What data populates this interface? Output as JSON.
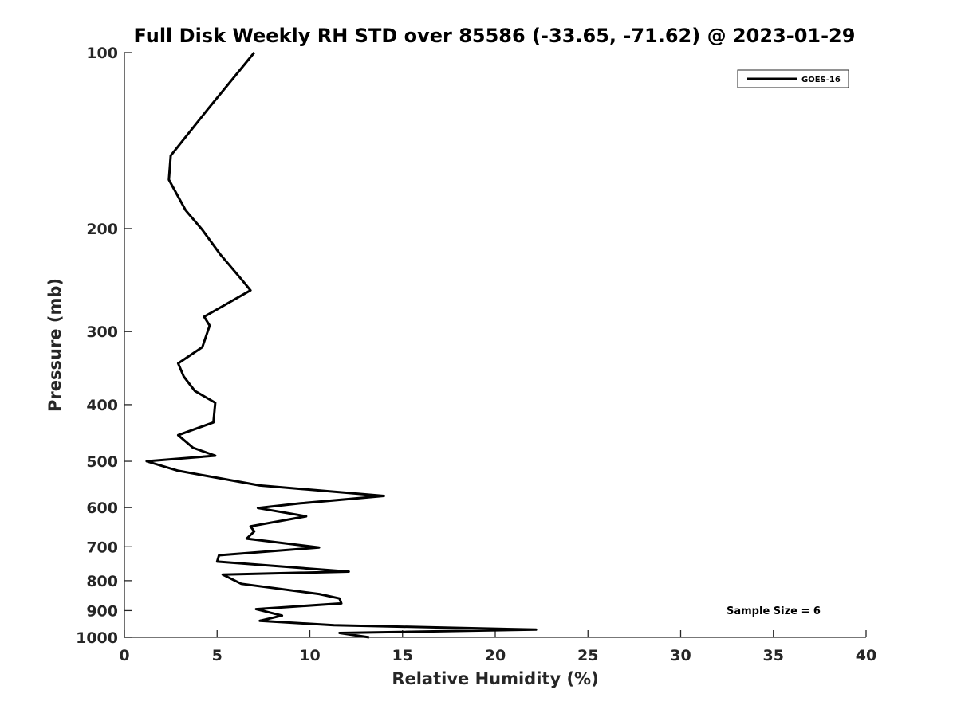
{
  "chart_data": {
    "type": "line",
    "title": "Full Disk Weekly RH STD over 85586 (-33.65, -71.62) @ 2023-01-29",
    "xlabel": "Relative Humidity (%)",
    "ylabel": "Pressure (mb)",
    "xlim": [
      0,
      40
    ],
    "ylim": [
      100,
      1000
    ],
    "y_scale": "log",
    "y_reversed": true,
    "x_ticks": [
      0,
      5,
      10,
      15,
      20,
      25,
      30,
      35,
      40
    ],
    "y_ticks": [
      100,
      200,
      300,
      400,
      500,
      600,
      700,
      800,
      900,
      1000
    ],
    "legend_position": "top-right",
    "grid": false,
    "annotation": "Sample Size = 6",
    "series": [
      {
        "name": "GOES-16",
        "color": "#000000",
        "points": [
          [
            7.0,
            100
          ],
          [
            4.5,
            125
          ],
          [
            2.5,
            150
          ],
          [
            2.4,
            165
          ],
          [
            3.3,
            186
          ],
          [
            4.2,
            201
          ],
          [
            5.2,
            222
          ],
          [
            6.3,
            244
          ],
          [
            6.8,
            255
          ],
          [
            4.3,
            283
          ],
          [
            4.6,
            293
          ],
          [
            4.2,
            319
          ],
          [
            2.9,
            340
          ],
          [
            3.2,
            358
          ],
          [
            3.8,
            379
          ],
          [
            4.9,
            397
          ],
          [
            4.8,
            429
          ],
          [
            2.9,
            451
          ],
          [
            3.7,
            474
          ],
          [
            4.9,
            489
          ],
          [
            1.2,
            500
          ],
          [
            2.9,
            519
          ],
          [
            7.3,
            550
          ],
          [
            14.0,
            573
          ],
          [
            9.5,
            590
          ],
          [
            7.2,
            601
          ],
          [
            9.8,
            621
          ],
          [
            6.8,
            646
          ],
          [
            7.0,
            659
          ],
          [
            6.6,
            678
          ],
          [
            10.5,
            702
          ],
          [
            5.1,
            724
          ],
          [
            5.0,
            742
          ],
          [
            12.1,
            772
          ],
          [
            5.3,
            781
          ],
          [
            6.3,
            810
          ],
          [
            10.5,
            843
          ],
          [
            11.6,
            858
          ],
          [
            11.7,
            875
          ],
          [
            7.1,
            895
          ],
          [
            8.5,
            918
          ],
          [
            7.3,
            937
          ],
          [
            11.3,
            953
          ],
          [
            22.2,
            970
          ],
          [
            11.6,
            983
          ],
          [
            13.2,
            1000
          ]
        ]
      }
    ]
  }
}
